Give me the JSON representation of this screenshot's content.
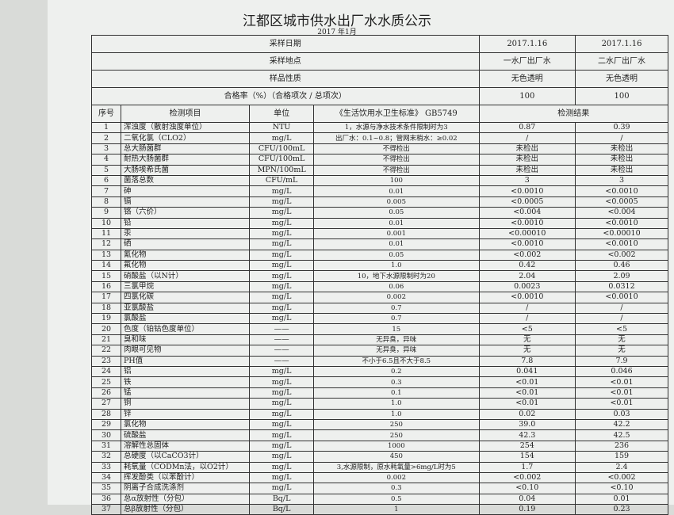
{
  "title": "江都区城市供水出厂水水质公示",
  "subtitle": "2017 年1月",
  "header": {
    "rows": [
      {
        "label": "采样日期",
        "v1": "2017.1.16",
        "v2": "2017.1.16"
      },
      {
        "label": "采样地点",
        "v1": "一水厂出厂水",
        "v2": "二水厂出厂水"
      },
      {
        "label": "样品性质",
        "v1": "无色透明",
        "v2": "无色透明"
      },
      {
        "label": "合格率（%）（合格项次 / 总项次）",
        "v1": "100",
        "v2": "100"
      }
    ],
    "col_no": "序号",
    "col_item": "检测项目",
    "col_unit": "单位",
    "col_std": "《生活饮用水卫生标准》 GB5749",
    "col_result": "检测结果"
  },
  "rows": [
    [
      "1",
      "浑浊度（散射浊度单位）",
      "NTU",
      "1，水源与净水技术条件限制时为3",
      "0.87",
      "0.39"
    ],
    [
      "2",
      "二氧化氯（CLO2）",
      "mg/L",
      "出厂水：0.1~0.8；管网末梢水：≥0.02",
      "/",
      "/"
    ],
    [
      "3",
      "总大肠菌群",
      "CFU/100mL",
      "不得检出",
      "未检出",
      "未检出"
    ],
    [
      "4",
      "耐热大肠菌群",
      "CFU/100mL",
      "不得检出",
      "未检出",
      "未检出"
    ],
    [
      "5",
      "大肠埃希氏菌",
      "MPN/100mL",
      "不得检出",
      "未检出",
      "未检出"
    ],
    [
      "6",
      "菌落总数",
      "CFU/mL",
      "100",
      "3",
      "3"
    ],
    [
      "7",
      "砷",
      "mg/L",
      "0.01",
      "<0.0010",
      "<0.0010"
    ],
    [
      "8",
      "镉",
      "mg/L",
      "0.005",
      "<0.0005",
      "<0.0005"
    ],
    [
      "9",
      "铬（六价）",
      "mg/L",
      "0.05",
      "<0.004",
      "<0.004"
    ],
    [
      "10",
      "铅",
      "mg/L",
      "0.01",
      "<0.0010",
      "<0.0010"
    ],
    [
      "11",
      "汞",
      "mg/L",
      "0.001",
      "<0.00010",
      "<0.00010"
    ],
    [
      "12",
      "硒",
      "mg/L",
      "0.01",
      "<0.0010",
      "<0.0010"
    ],
    [
      "13",
      "氰化物",
      "mg/L",
      "0.05",
      "<0.002",
      "<0.002"
    ],
    [
      "14",
      "氟化物",
      "mg/L",
      "1.0",
      "0.42",
      "0.46"
    ],
    [
      "15",
      "硝酸盐（以N计）",
      "mg/L",
      "10，地下水源限制时为20",
      "2.04",
      "2.09"
    ],
    [
      "16",
      "三氯甲烷",
      "mg/L",
      "0.06",
      "0.0023",
      "0.0312"
    ],
    [
      "17",
      "四氯化碳",
      "mg/L",
      "0.002",
      "<0.0010",
      "<0.0010"
    ],
    [
      "18",
      "亚氯酸盐",
      "mg/L",
      "0.7",
      "/",
      "/"
    ],
    [
      "19",
      "氯酸盐",
      "mg/L",
      "0.7",
      "/",
      "/"
    ],
    [
      "20",
      "色度（铂钴色度单位）",
      "——",
      "15",
      "<5",
      "<5"
    ],
    [
      "21",
      "臭和味",
      "——",
      "无异臭，异味",
      "无",
      "无"
    ],
    [
      "22",
      "肉眼可见物",
      "——",
      "无异臭，异味",
      "无",
      "无"
    ],
    [
      "23",
      "PH值",
      "——",
      "不小于6.5且不大于8.5",
      "7.8",
      "7.9"
    ],
    [
      "24",
      "铝",
      "mg/L",
      "0.2",
      "0.041",
      "0.046"
    ],
    [
      "25",
      "铁",
      "mg/L",
      "0.3",
      "<0.01",
      "<0.01"
    ],
    [
      "26",
      "锰",
      "mg/L",
      "0.1",
      "<0.01",
      "<0.01"
    ],
    [
      "27",
      "铜",
      "mg/L",
      "1.0",
      "<0.01",
      "<0.01"
    ],
    [
      "28",
      "锌",
      "mg/L",
      "1.0",
      "0.02",
      "0.03"
    ],
    [
      "29",
      "氯化物",
      "mg/L",
      "250",
      "39.0",
      "42.2"
    ],
    [
      "30",
      "硫酸盐",
      "mg/L",
      "250",
      "42.3",
      "42.5"
    ],
    [
      "31",
      "溶解性总固体",
      "mg/L",
      "1000",
      "254",
      "236"
    ],
    [
      "32",
      "总硬度（以CaCO3计）",
      "mg/L",
      "450",
      "154",
      "159"
    ],
    [
      "33",
      "耗氧量（CODMn法，以O2计）",
      "mg/L",
      "3,水源限制，原水耗氧量>6mg/L时为5",
      "1.7",
      "2.4"
    ],
    [
      "34",
      "挥发酚类（以苯酚计）",
      "mg/L",
      "0.002",
      "<0.002",
      "<0.002"
    ],
    [
      "35",
      "阴离子合成洗涤剂",
      "mg/L",
      "0.3",
      "<0.10",
      "<0.10"
    ],
    [
      "36",
      "总α放射性（分包）",
      "Bq/L",
      "0.5",
      "0.04",
      "0.01"
    ],
    [
      "37",
      "总β放射性（分包）",
      "Bq/L",
      "1",
      "0.19",
      "0.23"
    ]
  ]
}
